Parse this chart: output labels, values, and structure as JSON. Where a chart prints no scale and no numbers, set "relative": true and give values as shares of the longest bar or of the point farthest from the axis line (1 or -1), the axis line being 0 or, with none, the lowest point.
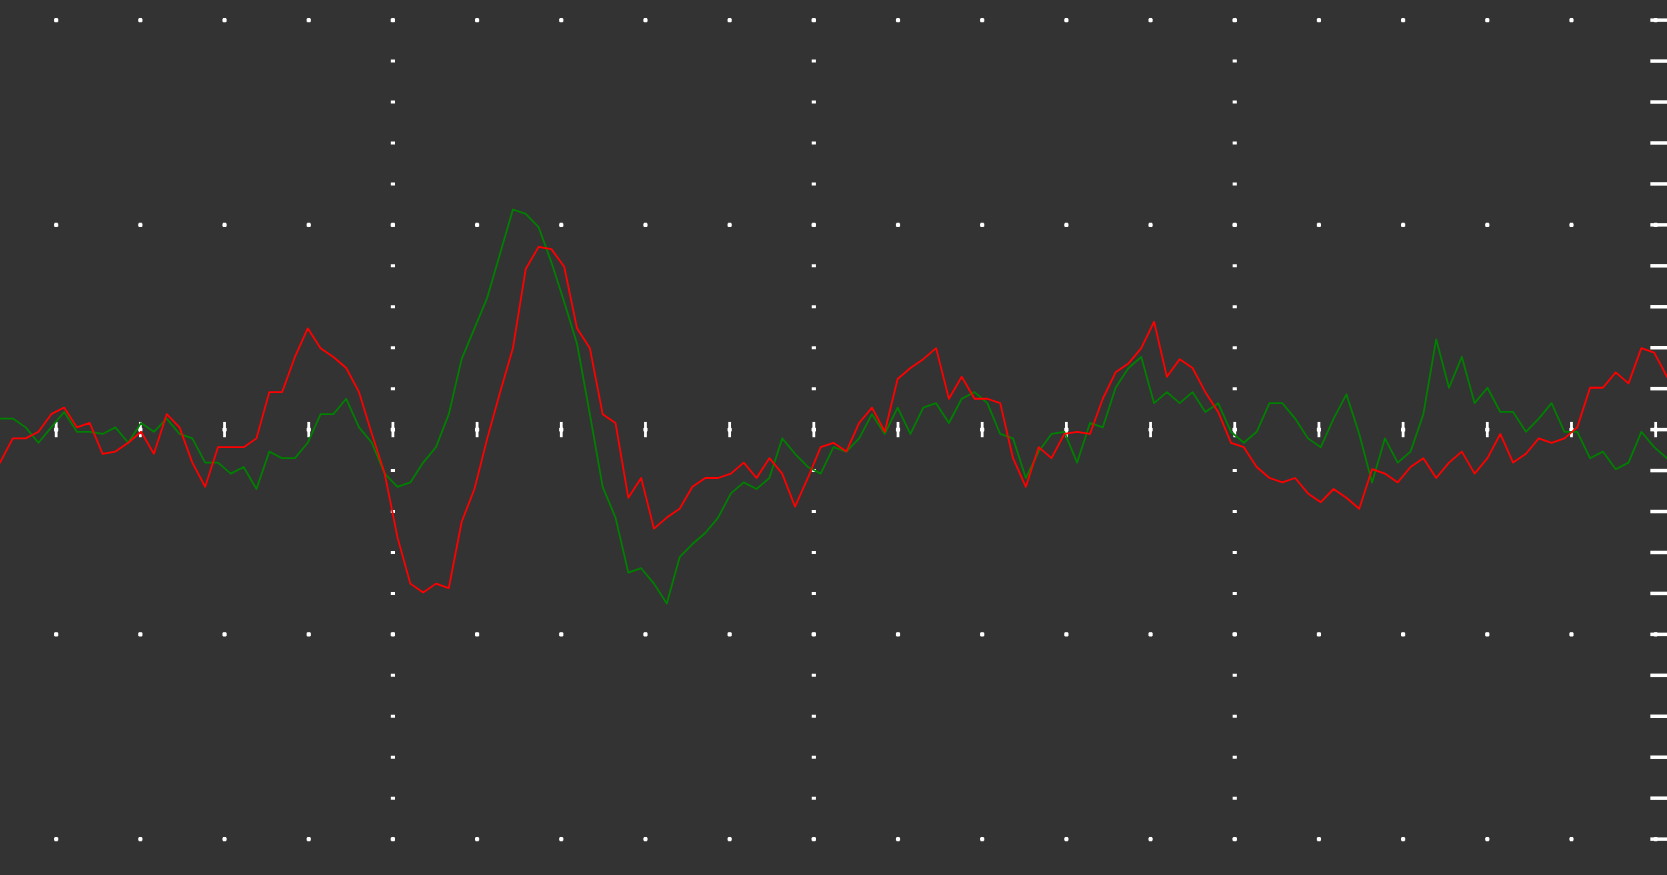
{
  "chart_data": {
    "type": "line",
    "relative": true,
    "grid": true,
    "marker": "none",
    "line_style": "solid",
    "categories": [
      null,
      null,
      null,
      null,
      null,
      null,
      null,
      null,
      null,
      null,
      null,
      null,
      null,
      null,
      null,
      null,
      null,
      null,
      null,
      null,
      null,
      null,
      null,
      null,
      null,
      null,
      null,
      null,
      null,
      null,
      null,
      null,
      null,
      null,
      null,
      null,
      null,
      null,
      null,
      null,
      null,
      null,
      null,
      null,
      null,
      null,
      null,
      null,
      null,
      null,
      null,
      null,
      null,
      null,
      null,
      null,
      null,
      null,
      null,
      null,
      null,
      null,
      null,
      null,
      null,
      null,
      null,
      null,
      null,
      null,
      null,
      null,
      null,
      null,
      null,
      null,
      null,
      null,
      null,
      null,
      null,
      null,
      null,
      null,
      null,
      null,
      null,
      null,
      null,
      null,
      null,
      null,
      null,
      null,
      null,
      null,
      null,
      null,
      null,
      null,
      null,
      null,
      null,
      null,
      null,
      null,
      null,
      null,
      null,
      null,
      null,
      null,
      null,
      null,
      null,
      null,
      null,
      null,
      null,
      null,
      null,
      null,
      null,
      null,
      null,
      null,
      null,
      null,
      null,
      null,
      null
    ],
    "series": [
      {
        "color": "#008000",
        "values": [
          0.05,
          0.05,
          0.01,
          -0.06,
          0.01,
          0.08,
          -0.01,
          -0.01,
          -0.02,
          0.01,
          -0.06,
          0.03,
          -0.01,
          0.05,
          -0.02,
          -0.04,
          -0.15,
          -0.15,
          -0.2,
          -0.17,
          -0.27,
          -0.1,
          -0.13,
          -0.13,
          -0.06,
          0.07,
          0.07,
          0.14,
          0.01,
          -0.06,
          -0.2,
          -0.26,
          -0.24,
          -0.15,
          -0.08,
          0.07,
          0.32,
          0.46,
          0.6,
          0.8,
          1.0,
          0.98,
          0.92,
          0.76,
          0.58,
          0.39,
          0.07,
          -0.26,
          -0.4,
          -0.65,
          -0.63,
          -0.7,
          -0.79,
          -0.58,
          -0.52,
          -0.47,
          -0.4,
          -0.29,
          -0.24,
          -0.27,
          -0.22,
          -0.04,
          -0.11,
          -0.17,
          -0.2,
          -0.08,
          -0.1,
          -0.04,
          0.07,
          -0.02,
          0.1,
          -0.02,
          0.1,
          0.12,
          0.03,
          0.14,
          0.17,
          0.12,
          -0.02,
          -0.04,
          -0.22,
          -0.1,
          -0.02,
          -0.01,
          -0.15,
          0.03,
          0.01,
          0.19,
          0.28,
          0.33,
          0.12,
          0.17,
          0.12,
          0.17,
          0.08,
          0.12,
          -0.01,
          -0.06,
          -0.01,
          0.12,
          0.12,
          0.05,
          -0.04,
          -0.08,
          0.05,
          0.16,
          -0.02,
          -0.24,
          -0.04,
          -0.15,
          -0.1,
          0.07,
          0.41,
          0.19,
          0.33,
          0.12,
          0.19,
          0.08,
          0.08,
          -0.01,
          0.05,
          0.12,
          -0.01,
          -0.01,
          -0.13,
          -0.1,
          -0.18,
          -0.15,
          -0.01,
          -0.08,
          -0.13
        ]
      },
      {
        "color": "#ff0000",
        "values": [
          -0.15,
          -0.04,
          -0.04,
          -0.01,
          0.07,
          0.1,
          0.01,
          0.03,
          -0.11,
          -0.1,
          -0.06,
          -0.01,
          -0.11,
          0.07,
          0.01,
          -0.15,
          -0.26,
          -0.08,
          -0.08,
          -0.08,
          -0.04,
          0.17,
          0.17,
          0.33,
          0.46,
          0.37,
          0.33,
          0.28,
          0.17,
          -0.02,
          -0.2,
          -0.49,
          -0.7,
          -0.74,
          -0.7,
          -0.72,
          -0.42,
          -0.27,
          -0.04,
          0.17,
          0.37,
          0.73,
          0.83,
          0.82,
          0.74,
          0.46,
          0.37,
          0.07,
          0.03,
          -0.31,
          -0.22,
          -0.45,
          -0.4,
          -0.36,
          -0.26,
          -0.22,
          -0.22,
          -0.2,
          -0.15,
          -0.22,
          -0.13,
          -0.2,
          -0.35,
          -0.22,
          -0.08,
          -0.06,
          -0.1,
          0.03,
          0.1,
          -0.01,
          0.23,
          0.28,
          0.32,
          0.37,
          0.14,
          0.24,
          0.14,
          0.14,
          0.12,
          -0.13,
          -0.26,
          -0.08,
          -0.13,
          -0.02,
          -0.01,
          -0.02,
          0.14,
          0.26,
          0.3,
          0.37,
          0.49,
          0.24,
          0.32,
          0.28,
          0.17,
          0.08,
          -0.06,
          -0.08,
          -0.17,
          -0.22,
          -0.24,
          -0.22,
          -0.29,
          -0.33,
          -0.27,
          -0.31,
          -0.36,
          -0.18,
          -0.2,
          -0.24,
          -0.17,
          -0.13,
          -0.22,
          -0.15,
          -0.1,
          -0.2,
          -0.13,
          -0.02,
          -0.15,
          -0.11,
          -0.04,
          -0.06,
          -0.04,
          0.01,
          0.19,
          0.19,
          0.26,
          0.21,
          0.37,
          0.35,
          0.24
        ]
      }
    ]
  }
}
